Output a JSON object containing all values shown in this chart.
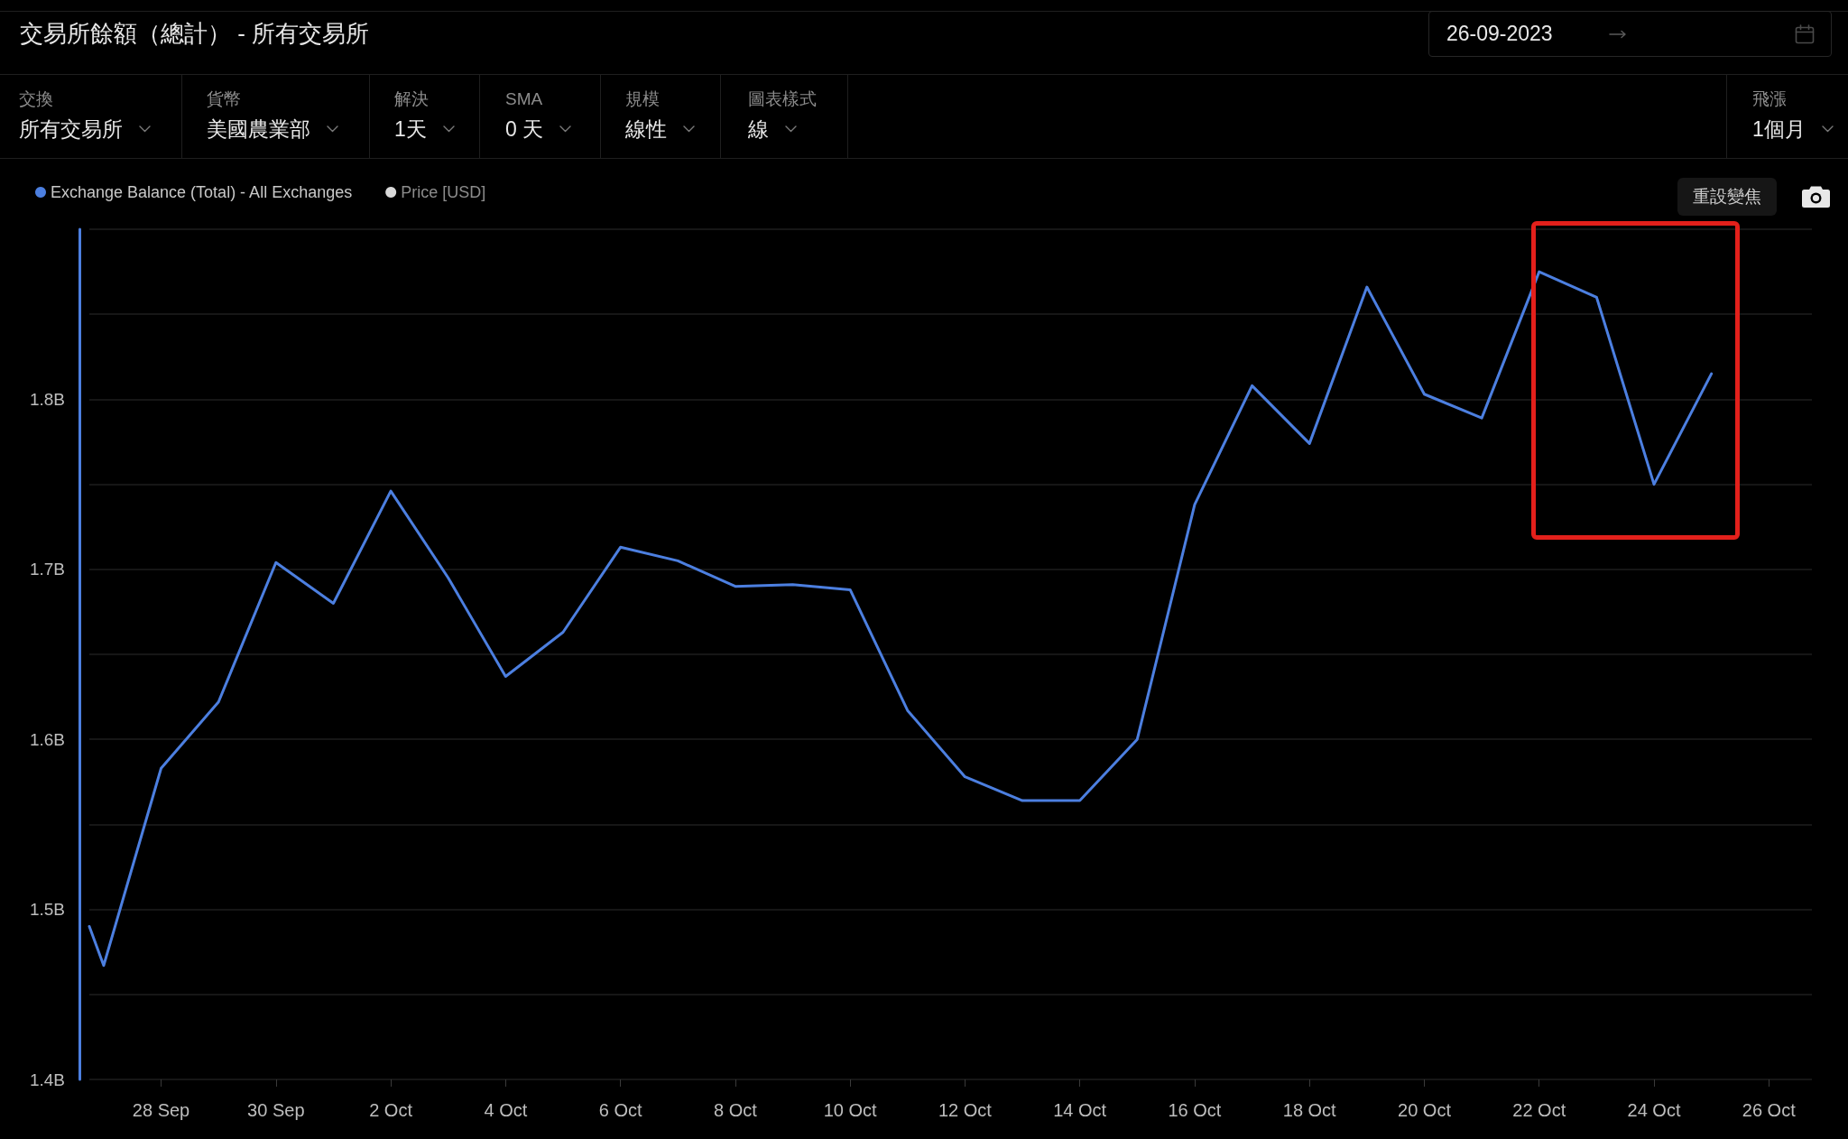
{
  "chart_data": {
    "type": "line",
    "title": "交易所餘額（總計） - 所有交易所",
    "annotations": [
      "交換",
      "所有交易所",
      "貨幣",
      "美國農業部",
      "解決",
      "1天",
      "SMA",
      "0 天",
      "規模",
      "線性",
      "圖表樣式",
      "線",
      "飛漲",
      "1個月",
      "26-09-2023",
      "重設變焦"
    ],
    "x": [
      "2023-09-26T18:00",
      "2023-09-27",
      "2023-09-28",
      "2023-09-29",
      "2023-09-30",
      "2023-10-01",
      "2023-10-02",
      "2023-10-03",
      "2023-10-04",
      "2023-10-05",
      "2023-10-06",
      "2023-10-07",
      "2023-10-08",
      "2023-10-09",
      "2023-10-10",
      "2023-10-11",
      "2023-10-12",
      "2023-10-13",
      "2023-10-14",
      "2023-10-15",
      "2023-10-16",
      "2023-10-17",
      "2023-10-18",
      "2023-10-19",
      "2023-10-20",
      "2023-10-21",
      "2023-10-22",
      "2023-10-23",
      "2023-10-24",
      "2023-10-25"
    ],
    "series": [
      {
        "name": "Exchange Balance (Total) - All Exchanges",
        "color": "#4c7fe0",
        "values": [
          1.49,
          1.467,
          1.583,
          1.622,
          1.704,
          1.68,
          1.746,
          1.695,
          1.637,
          1.663,
          1.713,
          1.705,
          1.69,
          1.691,
          1.688,
          1.617,
          1.578,
          1.564,
          1.564,
          1.6,
          1.738,
          1.808,
          1.774,
          1.866,
          1.803,
          1.789,
          1.875,
          1.86,
          1.75,
          1.815
        ]
      },
      {
        "name": "Price [USD]",
        "color": "#d9d9d9",
        "values": [
          null,
          null,
          null,
          null,
          null,
          null,
          null,
          null,
          null,
          null,
          null,
          null,
          null,
          null,
          null,
          null,
          null,
          null,
          null,
          null,
          null,
          null,
          null,
          null,
          null,
          null,
          null,
          null,
          null,
          null
        ]
      }
    ],
    "xlim": [
      "2023-09-26T18:00",
      "2023-10-26T18:00"
    ],
    "xticks": [
      {
        "value": "2023-09-28",
        "label": "28 Sep"
      },
      {
        "value": "2023-09-30",
        "label": "30 Sep"
      },
      {
        "value": "2023-10-02",
        "label": "2 Oct"
      },
      {
        "value": "2023-10-04",
        "label": "4 Oct"
      },
      {
        "value": "2023-10-06",
        "label": "6 Oct"
      },
      {
        "value": "2023-10-08",
        "label": "8 Oct"
      },
      {
        "value": "2023-10-10",
        "label": "10 Oct"
      },
      {
        "value": "2023-10-12",
        "label": "12 Oct"
      },
      {
        "value": "2023-10-14",
        "label": "14 Oct"
      },
      {
        "value": "2023-10-16",
        "label": "16 Oct"
      },
      {
        "value": "2023-10-18",
        "label": "18 Oct"
      },
      {
        "value": "2023-10-20",
        "label": "20 Oct"
      },
      {
        "value": "2023-10-22",
        "label": "22 Oct"
      },
      {
        "value": "2023-10-24",
        "label": "24 Oct"
      },
      {
        "value": "2023-10-26",
        "label": "26 Oct"
      }
    ],
    "ylim": [
      1.4,
      1.9
    ],
    "yticks": [
      {
        "value": 1.4,
        "label": "1.4B"
      },
      {
        "value": 1.45,
        "label": null
      },
      {
        "value": 1.5,
        "label": "1.5B"
      },
      {
        "value": 1.55,
        "label": null
      },
      {
        "value": 1.6,
        "label": "1.6B"
      },
      {
        "value": 1.65,
        "label": null
      },
      {
        "value": 1.7,
        "label": "1.7B"
      },
      {
        "value": 1.75,
        "label": null
      },
      {
        "value": 1.8,
        "label": "1.8B"
      },
      {
        "value": 1.85,
        "label": null
      },
      {
        "value": 1.9,
        "label": null
      }
    ],
    "grid": "y",
    "legend": "top left",
    "marker": "none",
    "line_style": "solid"
  }
}
